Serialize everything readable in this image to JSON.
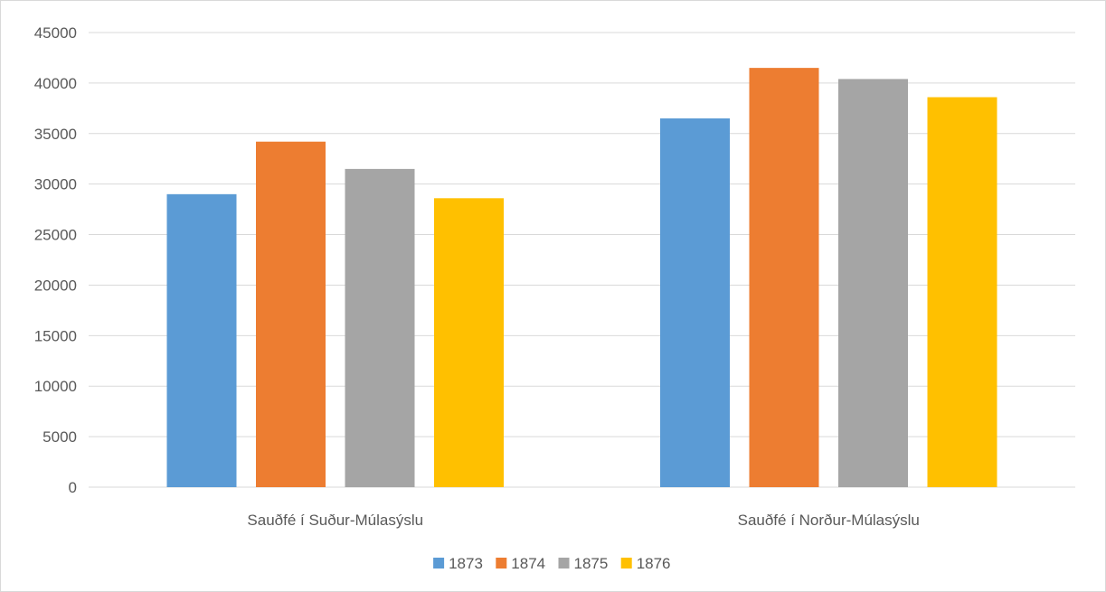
{
  "chart_data": {
    "type": "bar",
    "title": "",
    "xlabel": "",
    "ylabel": "",
    "categories": [
      "Sauðfé í Suður-Múlasýslu",
      "Sauðfé í Norður-Múlasýslu"
    ],
    "series": [
      {
        "name": "1873",
        "color": "#5b9bd5",
        "values": [
          29000,
          36500
        ]
      },
      {
        "name": "1874",
        "color": "#ed7d31",
        "values": [
          34200,
          41500
        ]
      },
      {
        "name": "1875",
        "color": "#a5a5a5",
        "values": [
          31500,
          40400
        ]
      },
      {
        "name": "1876",
        "color": "#ffc000",
        "values": [
          28600,
          38600
        ]
      }
    ],
    "ylim": [
      0,
      45000
    ],
    "yticks": [
      "0",
      "5000",
      "10000",
      "15000",
      "20000",
      "25000",
      "30000",
      "35000",
      "40000",
      "45000"
    ],
    "grid": true,
    "legend_position": "bottom"
  }
}
